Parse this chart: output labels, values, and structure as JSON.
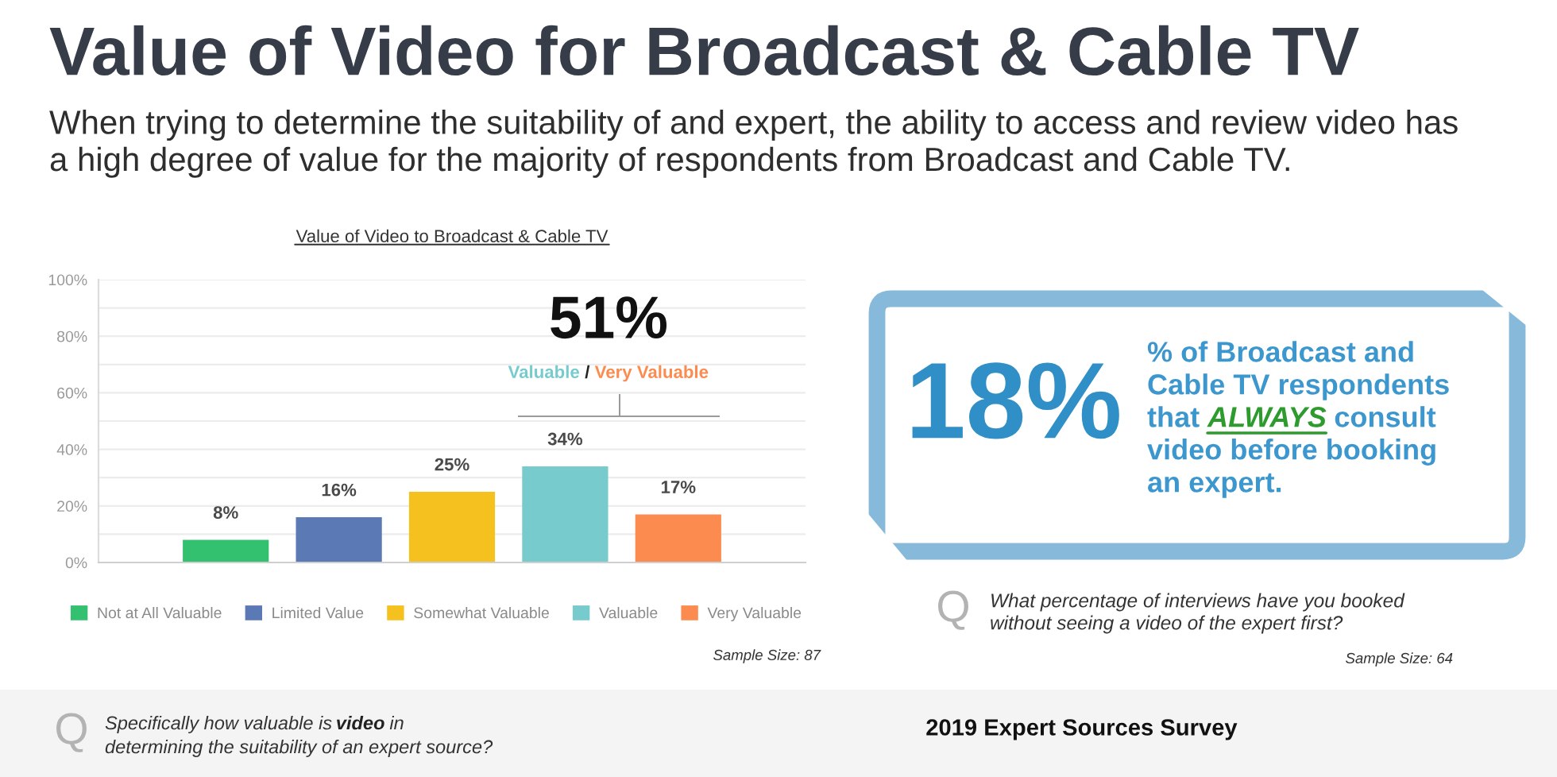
{
  "chart_data": [
    {
      "type": "other",
      "title": "Value of Video for Broadcast & Cable TV",
      "subtitle": "When trying to determine the suitability of and expert, the ability to access and review video has a high degree of value for the majority of respondents from Broadcast and Cable TV.",
      "annotations": [
        "2019 Expert Sources Survey"
      ]
    },
    {
      "type": "bar",
      "title": "Value of Video to Broadcast & Cable TV",
      "categories": [
        null
      ],
      "series": [
        {
          "name": "Not at All Valuable",
          "color": "#34c16f",
          "values": [
            8
          ],
          "value_labels": [
            "8%"
          ]
        },
        {
          "name": "Limited Value",
          "color": "#5b79b4",
          "values": [
            16
          ],
          "value_labels": [
            "16%"
          ]
        },
        {
          "name": "Somewhat Valuable",
          "color": "#f4c11f",
          "values": [
            25
          ],
          "value_labels": [
            "25%"
          ]
        },
        {
          "name": "Valuable",
          "color": "#77cbcc",
          "values": [
            34
          ],
          "value_labels": [
            "34%"
          ]
        },
        {
          "name": "Very Valuable",
          "color": "#fc8b4f",
          "values": [
            17
          ],
          "value_labels": [
            "17%"
          ]
        }
      ],
      "ylim": [
        0,
        100
      ],
      "yticks": [
        {
          "value": 0,
          "label": "0%"
        },
        {
          "value": 10,
          "label": null
        },
        {
          "value": 20,
          "label": "20%"
        },
        {
          "value": 30,
          "label": null
        },
        {
          "value": 40,
          "label": "40%"
        },
        {
          "value": 50,
          "label": null
        },
        {
          "value": 60,
          "label": "60%"
        },
        {
          "value": 70,
          "label": null
        },
        {
          "value": 80,
          "label": "80%"
        },
        {
          "value": 90,
          "label": null
        },
        {
          "value": 100,
          "label": "100%"
        }
      ],
      "grid": "y",
      "legend": "bottom",
      "tick_labels": "y",
      "annotations": [
        "51%",
        "Valuable",
        "/",
        "Very Valuable",
        "Sample Size: 87",
        "Q",
        "Specifically how valuable is",
        "video",
        "in",
        "determining the suitability of an expert source?"
      ]
    },
    {
      "type": "other",
      "annotations": [
        "18%",
        "% of Broadcast and",
        "Cable TV respondents",
        "that",
        "ALWAYS",
        "consult",
        "video before booking",
        "an expert.",
        "Q",
        "What percentage of interviews have you booked",
        "without seeing a video of the expert first?",
        "Sample Size: 64"
      ]
    }
  ]
}
